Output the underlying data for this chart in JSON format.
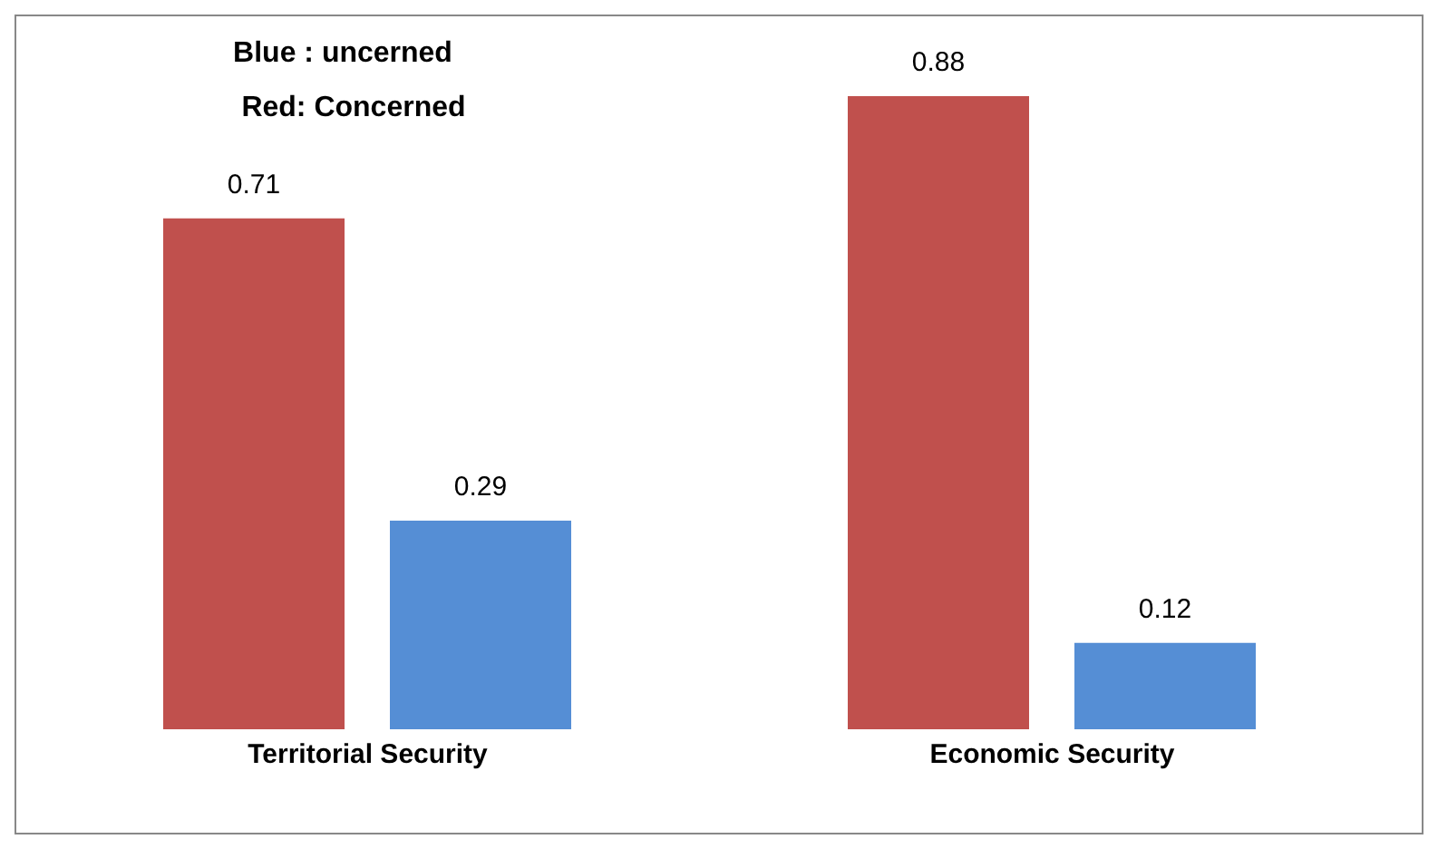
{
  "chart_data": {
    "type": "bar",
    "categories": [
      "Territorial Security",
      "Economic Security"
    ],
    "series": [
      {
        "color": "#c0504d",
        "values": [
          0.71,
          0.88
        ]
      },
      {
        "color": "#558ed5",
        "values": [
          0.29,
          0.12
        ]
      }
    ],
    "data_labels": true,
    "grid": false,
    "legend": false,
    "annotations": [
      "Blue : uncerned",
      "Red: Concerned"
    ]
  }
}
